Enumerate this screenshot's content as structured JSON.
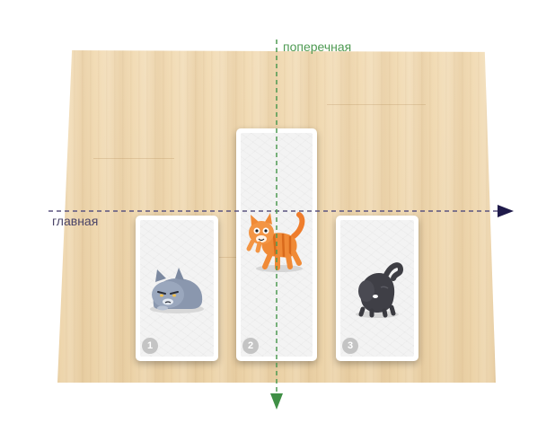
{
  "axes": {
    "main_label": "главная",
    "cross_label": "поперечная",
    "main_color": "#5b5480",
    "cross_color": "#4e9a52"
  },
  "cards": [
    {
      "number": "1",
      "cat": "grumpy-gray-cat"
    },
    {
      "number": "2",
      "cat": "orange-tabby-cat"
    },
    {
      "number": "3",
      "cat": "black-cat"
    }
  ],
  "colors": {
    "board": "#efd8ae",
    "card_frame": "#ffffff",
    "badge": "#c4c4c4"
  }
}
